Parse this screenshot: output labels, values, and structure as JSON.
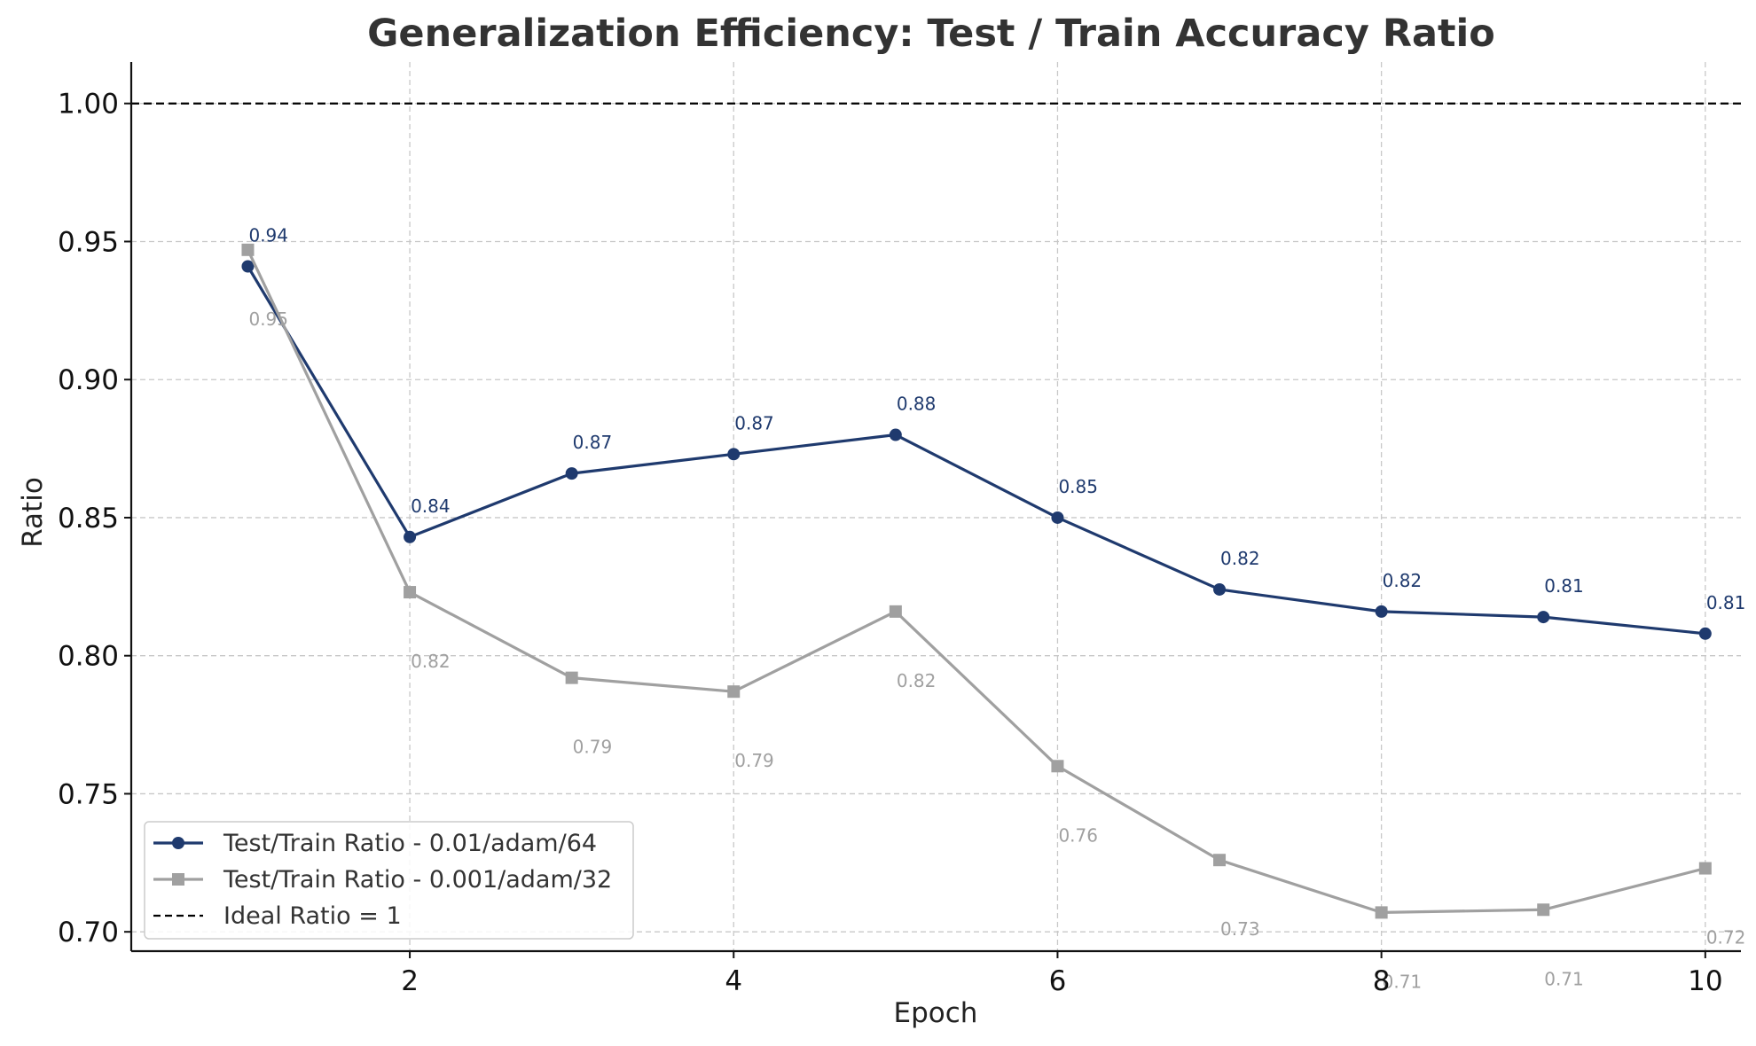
{
  "chart_data": {
    "type": "line",
    "title": "Generalization Efficiency: Test / Train Accuracy Ratio",
    "xlabel": "Epoch",
    "ylabel": "Ratio",
    "xlim": [
      0.28,
      10.22
    ],
    "ylim": [
      0.693,
      1.015
    ],
    "x_ticks": [
      2,
      4,
      6,
      8,
      10
    ],
    "x_tick_labels": [
      "2",
      "4",
      "6",
      "8",
      "10"
    ],
    "y_ticks": [
      0.7,
      0.75,
      0.8,
      0.85,
      0.9,
      0.95,
      1.0
    ],
    "y_tick_labels": [
      "0.70",
      "0.75",
      "0.80",
      "0.85",
      "0.90",
      "0.95",
      "1.00"
    ],
    "grid": true,
    "legend_position": "lower-left",
    "x": [
      1,
      2,
      3,
      4,
      5,
      6,
      7,
      8,
      9,
      10
    ],
    "series": [
      {
        "name": "Test/Train Ratio - 0.01/adam/64",
        "marker": "circle",
        "color": "#1f3a6e",
        "values": [
          0.941,
          0.843,
          0.866,
          0.873,
          0.88,
          0.85,
          0.824,
          0.816,
          0.814,
          0.808
        ],
        "labels": [
          "0.94",
          "0.84",
          "0.87",
          "0.87",
          "0.88",
          "0.85",
          "0.82",
          "0.82",
          "0.81",
          "0.81"
        ]
      },
      {
        "name": "Test/Train Ratio - 0.001/adam/32",
        "marker": "square",
        "color": "#a0a0a0",
        "values": [
          0.947,
          0.823,
          0.792,
          0.787,
          0.816,
          0.76,
          0.726,
          0.707,
          0.708,
          0.723
        ],
        "labels": [
          "0.95",
          "0.82",
          "0.79",
          "0.79",
          "0.82",
          "0.76",
          "0.73",
          "0.71",
          "0.71",
          "0.72"
        ]
      }
    ],
    "reference_line": {
      "name": "Ideal Ratio = 1",
      "y": 1.0,
      "color": "#000000",
      "style": "dashed"
    }
  }
}
